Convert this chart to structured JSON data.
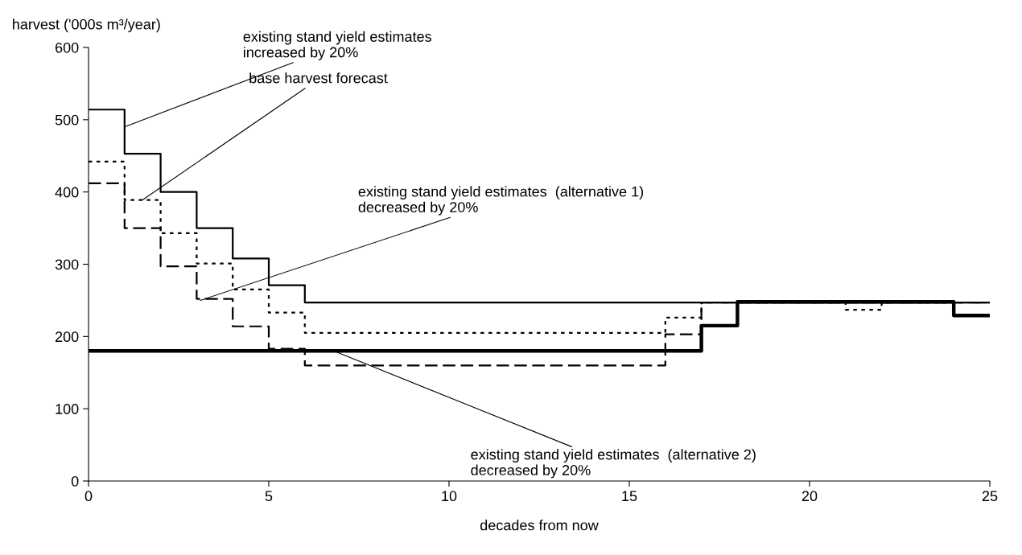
{
  "chart_data": {
    "type": "step",
    "ylabel": "harvest ('000s m³/year)",
    "xlabel": "decades from now",
    "x": [
      0,
      1,
      2,
      3,
      4,
      5,
      6,
      7,
      8,
      9,
      10,
      11,
      12,
      13,
      14,
      15,
      16,
      17,
      18,
      19,
      20,
      21,
      22,
      23,
      24,
      25
    ],
    "series": [
      {
        "color": "#000000",
        "line_style": "solid",
        "values": [
          514,
          453,
          400,
          350,
          308,
          271,
          247,
          247,
          247,
          247,
          247,
          247,
          247,
          247,
          247,
          247,
          247,
          247,
          247,
          247,
          247,
          247,
          247,
          247,
          247,
          247
        ]
      },
      {
        "color": "#000000",
        "line_style": "dotted",
        "values": [
          442,
          389,
          343,
          301,
          265,
          233,
          205,
          205,
          205,
          205,
          205,
          205,
          205,
          205,
          205,
          205,
          226,
          247,
          247,
          247,
          247,
          237,
          247,
          247,
          247,
          247
        ]
      },
      {
        "color": "#000000",
        "line_style": "dashed",
        "values": [
          412,
          350,
          297,
          252,
          214,
          183,
          160,
          160,
          160,
          160,
          160,
          160,
          160,
          160,
          160,
          160,
          203,
          247,
          247,
          247,
          247,
          247,
          247,
          247,
          247,
          247
        ]
      },
      {
        "color": "#000000",
        "line_style": "solid",
        "values": [
          180,
          180,
          180,
          180,
          180,
          180,
          180,
          180,
          180,
          180,
          180,
          180,
          180,
          180,
          180,
          180,
          180,
          215,
          248,
          248,
          248,
          248,
          248,
          248,
          229,
          229
        ]
      }
    ],
    "xlim": [
      0,
      25
    ],
    "xticks": [
      0,
      5,
      10,
      15,
      20,
      25
    ],
    "ylim": [
      0,
      600
    ],
    "yticks": [
      0,
      100,
      200,
      300,
      400,
      500,
      600
    ],
    "grid": false,
    "legend": false,
    "annotations": [
      {
        "text": "existing stand yield estimates\nincreased by 20%",
        "x": 1,
        "y": 490
      },
      {
        "text": "base harvest forecast",
        "x": 1.5,
        "y": 389
      },
      {
        "text": "existing stand yield estimates  (alternative 1)\ndecreased by 20%",
        "x": 3.1,
        "y": 250
      },
      {
        "text": "existing stand yield estimates  (alternative 2)\ndecreased by 20%",
        "x": 6.8,
        "y": 180
      }
    ]
  }
}
